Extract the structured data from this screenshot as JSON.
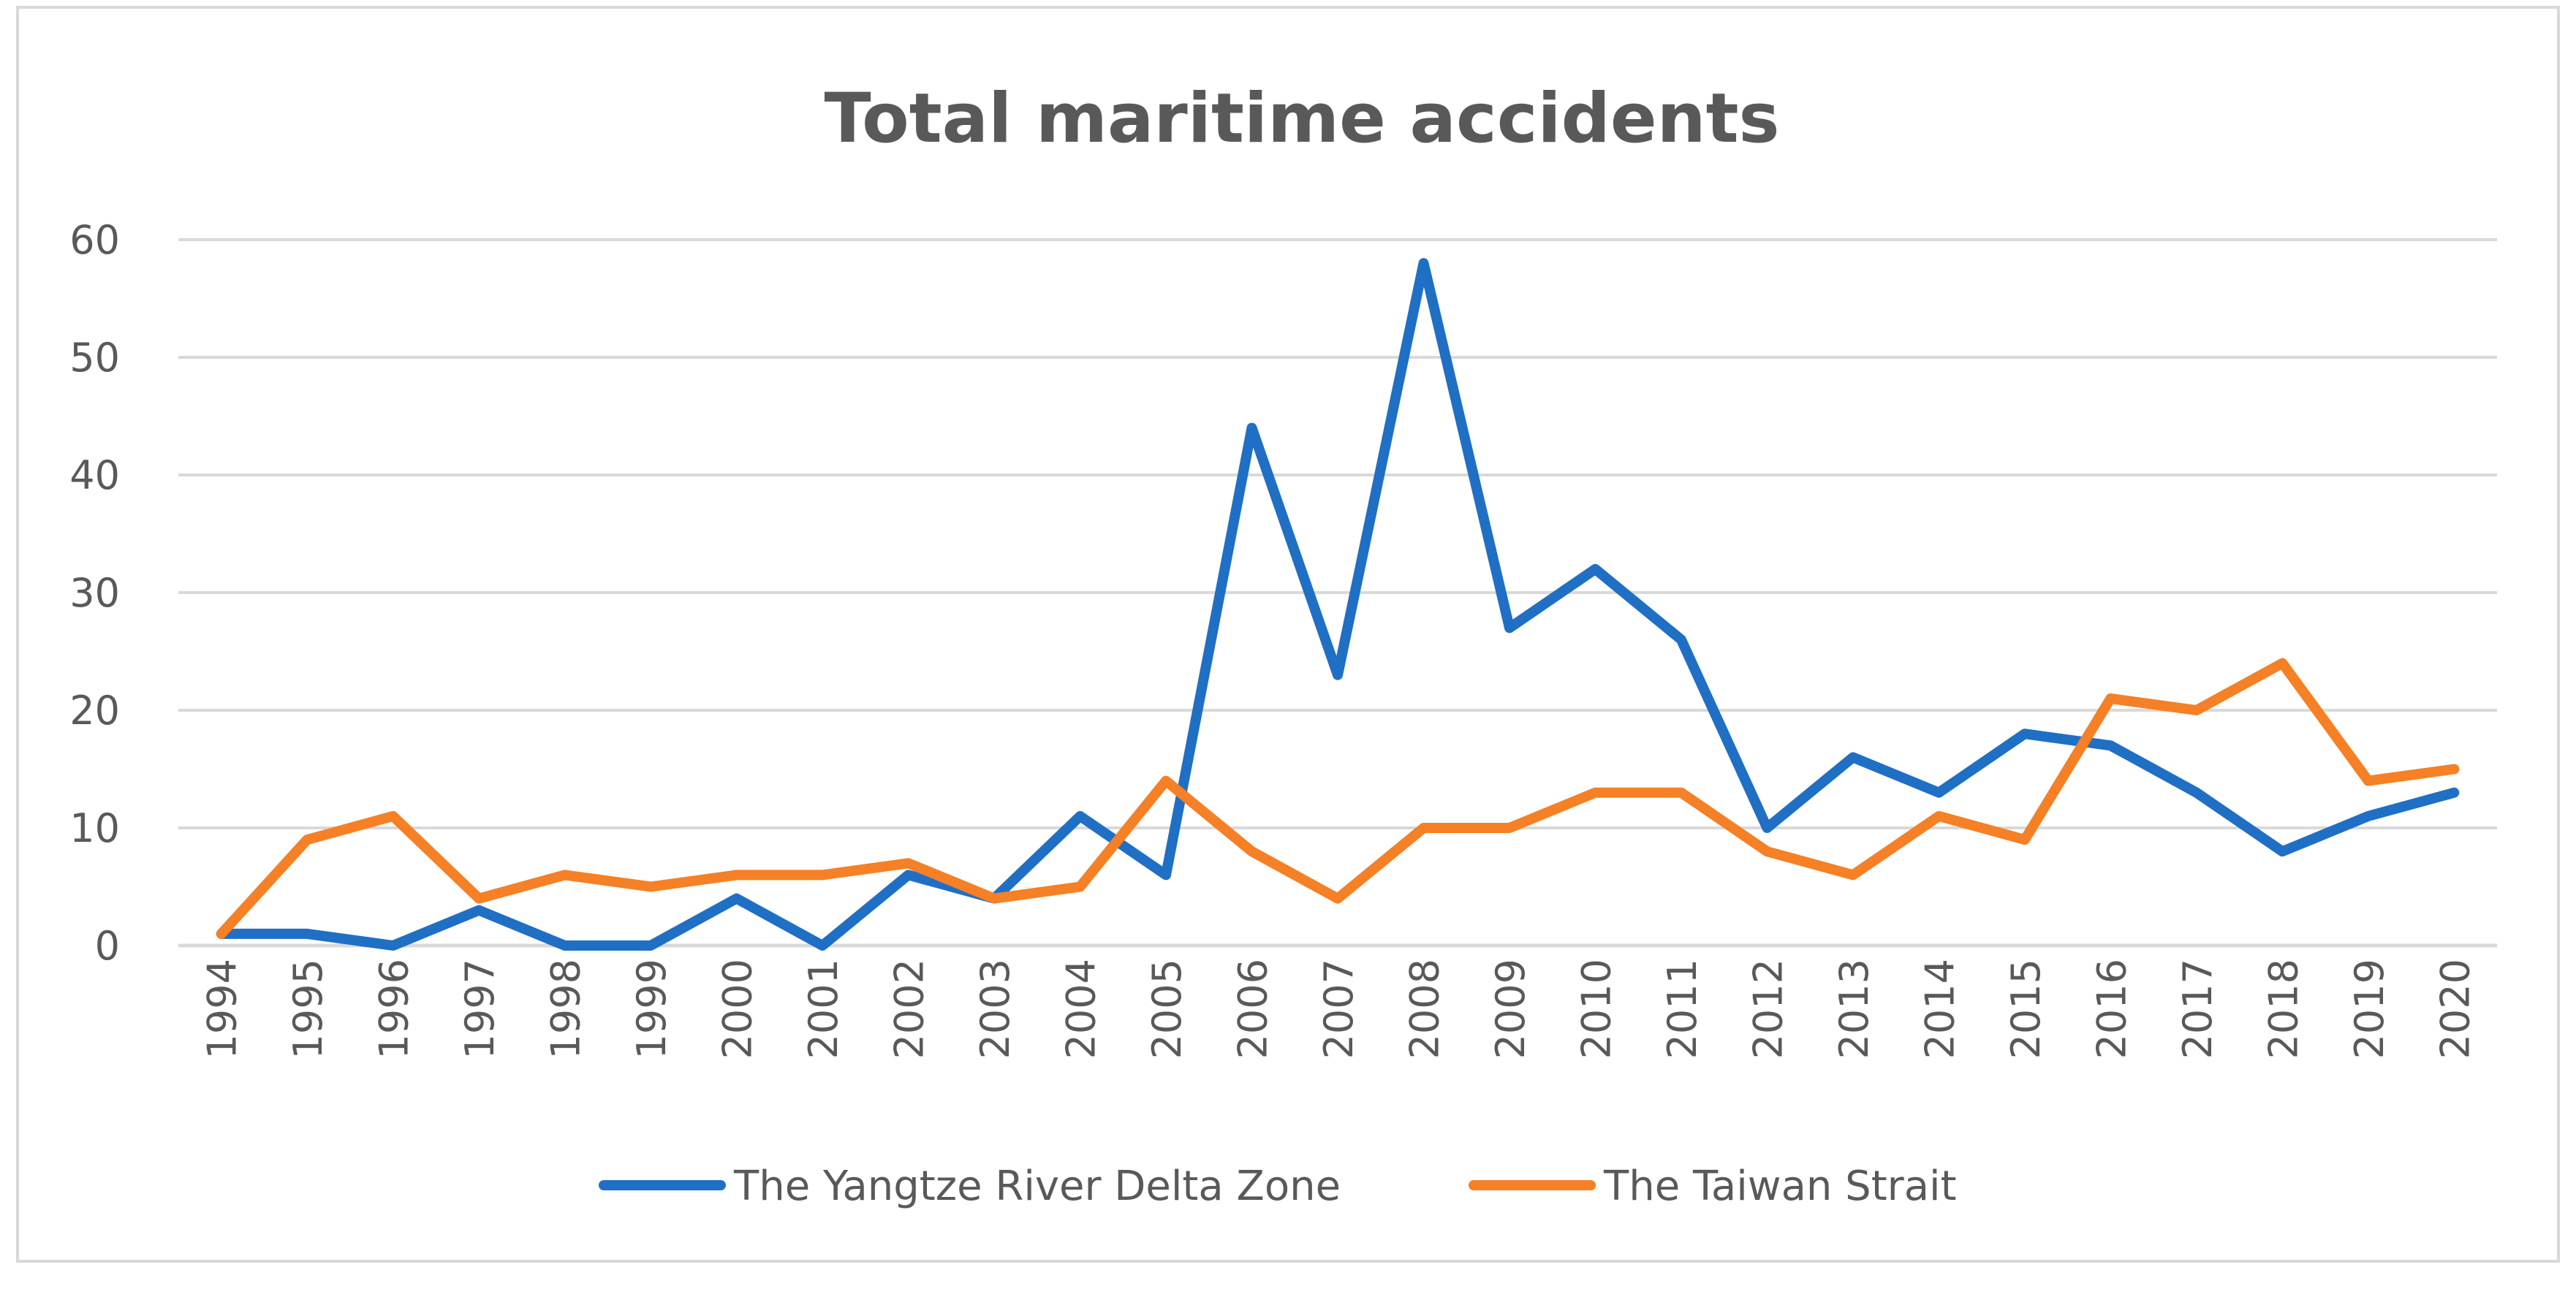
{
  "chart_data": {
    "type": "line",
    "title": "Total maritime accidents",
    "xlabel": "",
    "ylabel": "",
    "ylim": [
      0,
      60
    ],
    "yticks": [
      "0",
      "10",
      "20",
      "30",
      "40",
      "50",
      "60"
    ],
    "grid": true,
    "legend_position": "bottom",
    "categories": [
      "1994",
      "1995",
      "1996",
      "1997",
      "1998",
      "1999",
      "2000",
      "2001",
      "2002",
      "2003",
      "2004",
      "2005",
      "2006",
      "2007",
      "2008",
      "2009",
      "2010",
      "2011",
      "2012",
      "2013",
      "2014",
      "2015",
      "2016",
      "2017",
      "2018",
      "2019",
      "2020"
    ],
    "series": [
      {
        "name": "The Yangtze River Delta Zone",
        "color": "#1f6fc5",
        "values": [
          1,
          1,
          0,
          3,
          0,
          0,
          4,
          0,
          6,
          4,
          11,
          6,
          44,
          23,
          58,
          27,
          32,
          26,
          10,
          16,
          13,
          18,
          17,
          13,
          8,
          11,
          13
        ]
      },
      {
        "name": "The Taiwan Strait",
        "color": "#f58025",
        "values": [
          1,
          9,
          11,
          4,
          6,
          5,
          6,
          6,
          7,
          4,
          5,
          14,
          8,
          4,
          10,
          10,
          13,
          13,
          8,
          6,
          11,
          9,
          21,
          20,
          24,
          14,
          15
        ]
      }
    ]
  }
}
